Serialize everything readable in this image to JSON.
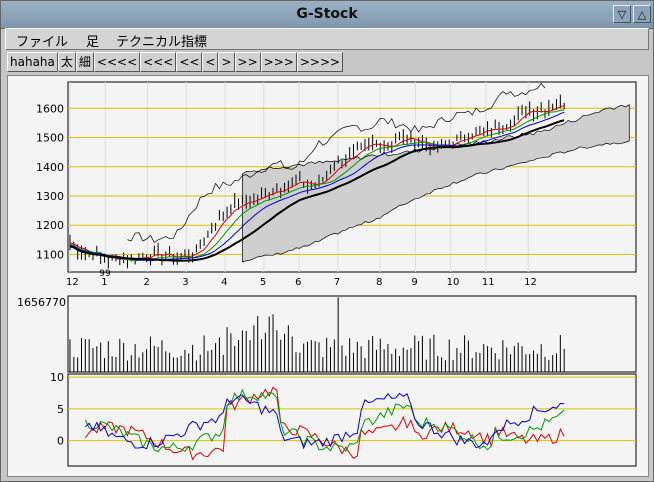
{
  "window": {
    "title": "G-Stock",
    "buttons": [
      "▽",
      "△"
    ]
  },
  "menu": {
    "items": [
      "ファイル",
      "足",
      "テクニカル指標"
    ]
  },
  "toolbar": {
    "buttons": [
      "hahaha",
      "太",
      "細",
      "<<<<",
      "<<<",
      "<<",
      "<",
      ">",
      ">>",
      ">>>",
      ">>>>"
    ]
  },
  "colors": {
    "grid": "#e0c000",
    "price": "#000000",
    "volume": "#000000",
    "ichimoku_cloud": "#cfcfcf",
    "line_red": "#e00000",
    "line_green": "#009900",
    "line_blue": "#0000dd"
  },
  "chart_data": [
    {
      "type": "line",
      "name": "price",
      "ylabels": [
        "1600",
        "1500",
        "1400",
        "1300",
        "1200",
        "1100"
      ],
      "yvalues": [
        1600,
        1500,
        1400,
        1300,
        1200,
        1100
      ],
      "ylim": [
        1040,
        1690
      ],
      "xlabels": [
        "12",
        "1",
        "2",
        "3",
        "4",
        "5",
        "6",
        "7",
        "8",
        "9",
        "10",
        "11",
        "12"
      ],
      "annotation": "99",
      "series_hint": {
        "close_points": [
          1140,
          1110,
          1100,
          1080,
          1090,
          1085,
          1100,
          1100,
          1090,
          1095,
          1110,
          1180,
          1240,
          1270,
          1280,
          1300,
          1320,
          1340,
          1350,
          1330,
          1360,
          1420,
          1430,
          1460,
          1480,
          1470,
          1500,
          1490,
          1480,
          1460,
          1480,
          1500,
          1520,
          1520,
          1540,
          1560,
          1600,
          1590,
          1610,
          1620
        ],
        "cloud_top": [
          1380,
          1400,
          1410,
          1420,
          1440,
          1450,
          1470,
          1480,
          1500,
          1520,
          1560,
          1600,
          1620
        ],
        "cloud_bottom": [
          1080,
          1100,
          1130,
          1180,
          1220,
          1280,
          1330,
          1370,
          1400,
          1430,
          1460,
          1480,
          1490
        ]
      }
    },
    {
      "type": "bar",
      "name": "volume",
      "ylabels": [
        "1656770"
      ],
      "ymax": 1656770
    },
    {
      "type": "line",
      "name": "oscillator",
      "ylabels": [
        "10",
        "5",
        "0"
      ],
      "yvalues": [
        10,
        5,
        0
      ],
      "ylim": [
        -4,
        10.5
      ]
    }
  ]
}
